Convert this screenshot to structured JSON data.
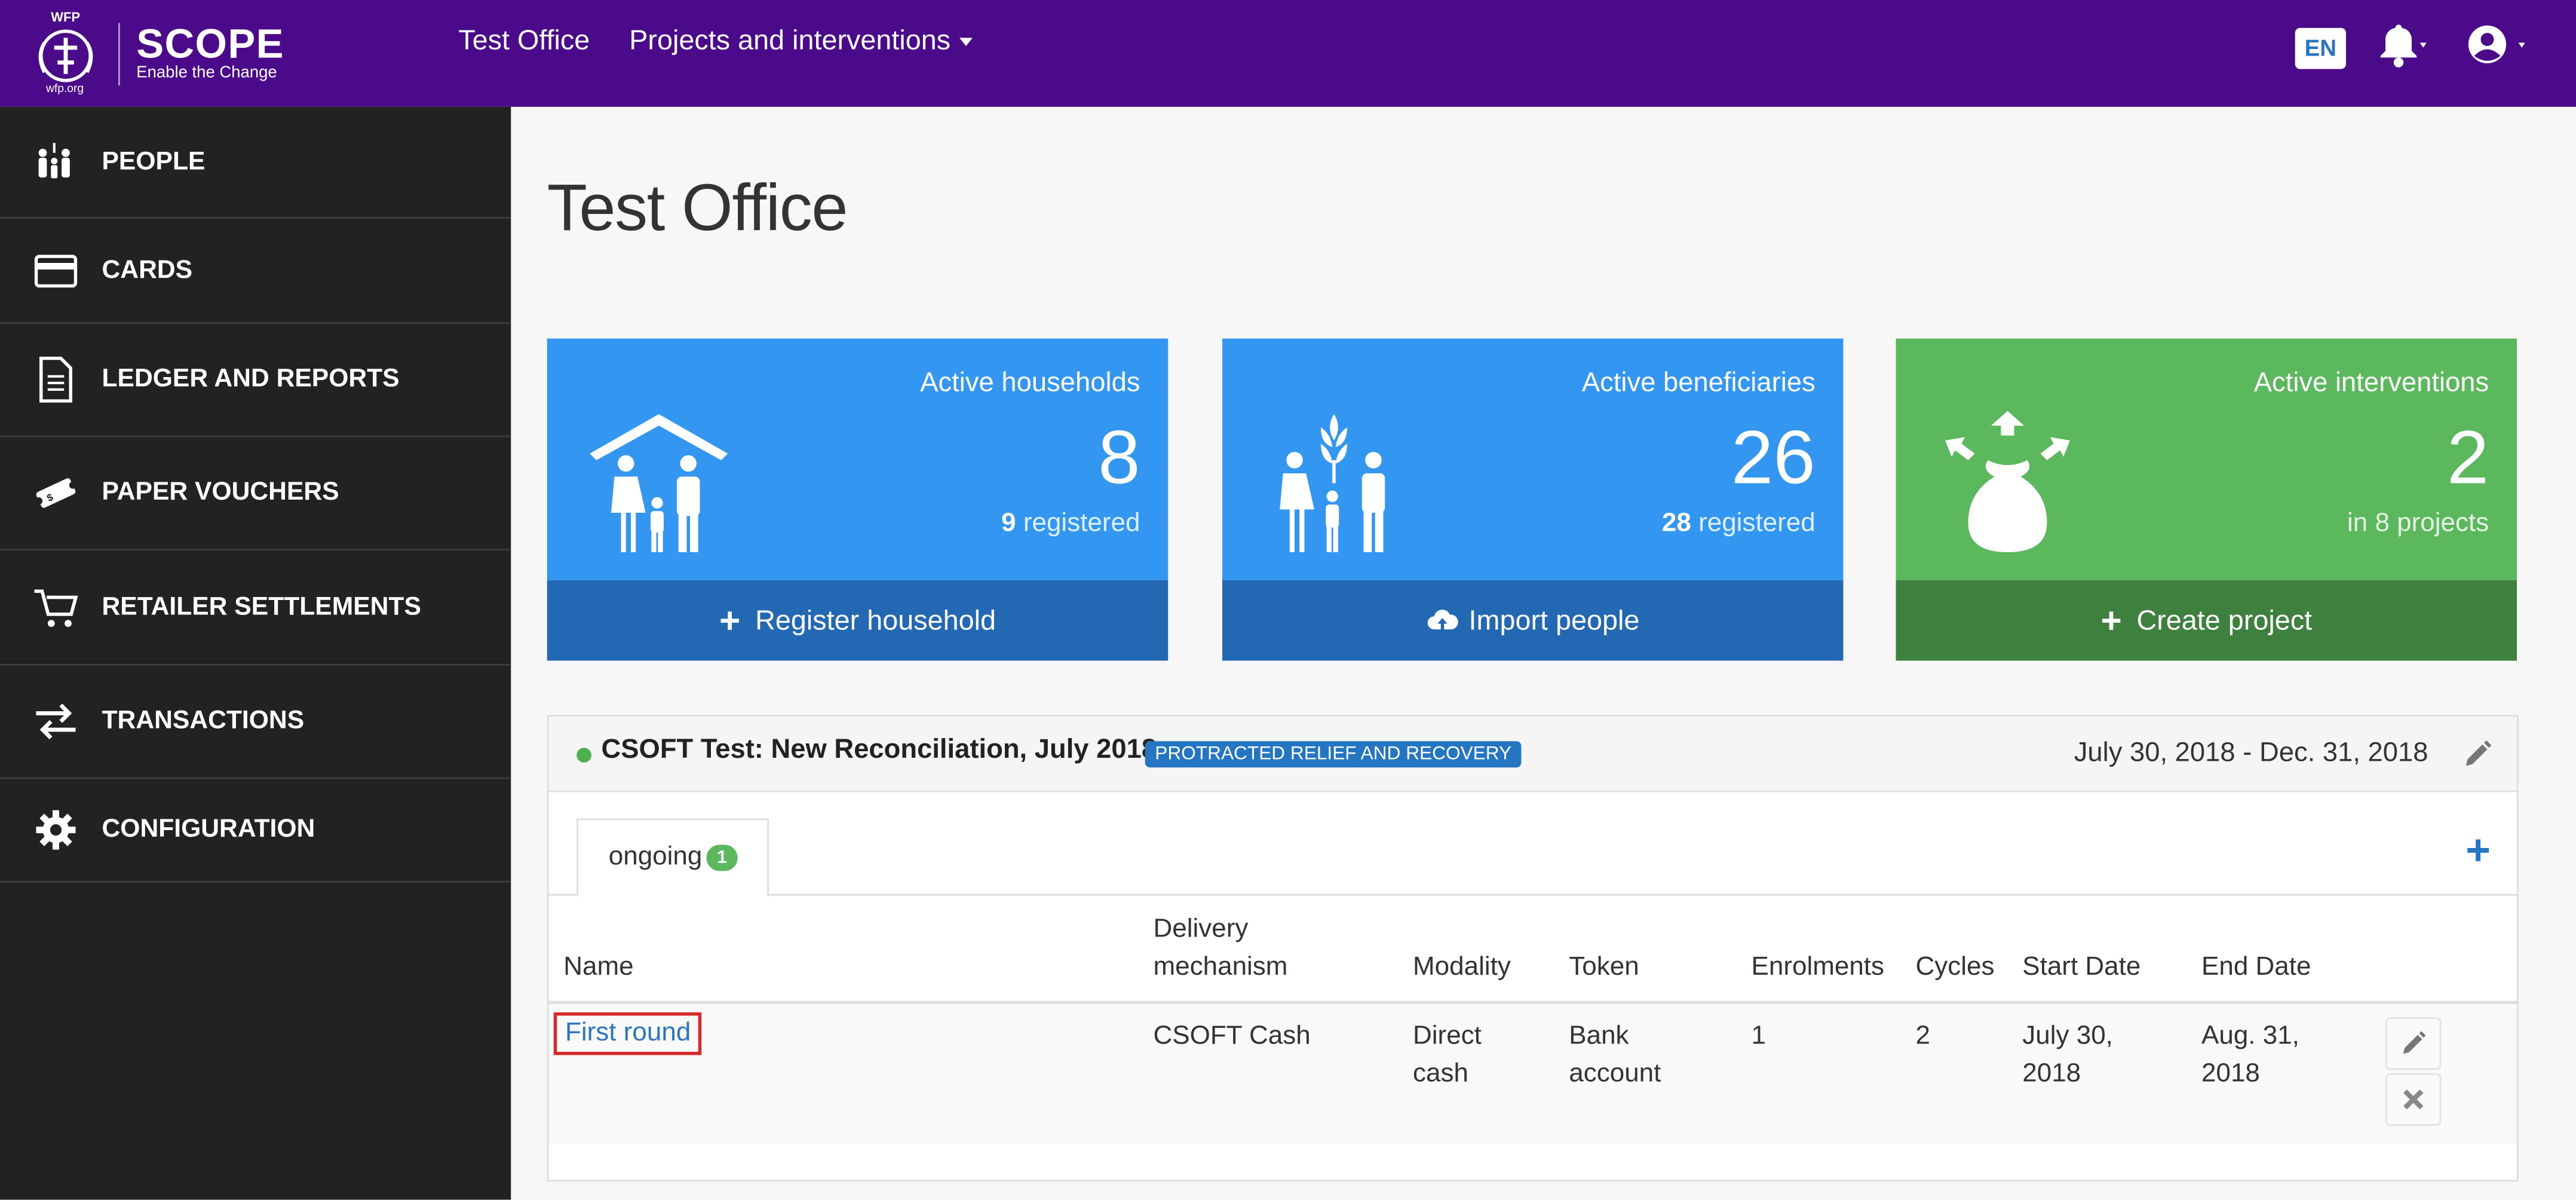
{
  "topnav": {
    "logo_top": "WFP",
    "logo_bottom": "wfp.org",
    "brand": "SCOPE",
    "tagline": "Enable the Change",
    "office_link": "Test Office",
    "projects_menu": "Projects and interventions",
    "lang": "EN"
  },
  "sidebar": {
    "items": [
      {
        "label": "PEOPLE",
        "icon": "people-icon"
      },
      {
        "label": "CARDS",
        "icon": "card-icon"
      },
      {
        "label": "LEDGER AND REPORTS",
        "icon": "document-icon"
      },
      {
        "label": "PAPER VOUCHERS",
        "icon": "voucher-icon"
      },
      {
        "label": "RETAILER SETTLEMENTS",
        "icon": "cart-icon"
      },
      {
        "label": "TRANSACTIONS",
        "icon": "transfer-arrows-icon"
      },
      {
        "label": "CONFIGURATION",
        "icon": "gear-icon"
      }
    ]
  },
  "page": {
    "title": "Test Office"
  },
  "stats": [
    {
      "title": "Active households",
      "value": "8",
      "sub_num": "9",
      "sub_text": "registered",
      "action": "Register household"
    },
    {
      "title": "Active beneficiaries",
      "value": "26",
      "sub_num": "28",
      "sub_text": "registered",
      "action": "Import people"
    },
    {
      "title": "Active interventions",
      "value": "2",
      "sub_text": "in 8 projects",
      "action": "Create project"
    }
  ],
  "project": {
    "name": "CSOFT Test: New Reconciliation, July 2018",
    "badge": "PROTRACTED RELIEF AND RECOVERY",
    "dates": "July 30, 2018 - Dec. 31, 2018",
    "tab_label": "ongoing",
    "tab_count": "1",
    "columns": {
      "name": "Name",
      "delivery_1": "Delivery",
      "delivery_2": "mechanism",
      "modality": "Modality",
      "token": "Token",
      "enrolments": "Enrolments",
      "cycles": "Cycles",
      "start": "Start Date",
      "end": "End Date"
    },
    "row": {
      "name": "First round",
      "delivery": "CSOFT Cash",
      "modality_1": "Direct",
      "modality_2": "cash",
      "token_1": "Bank",
      "token_2": "account",
      "enrolments": "1",
      "cycles": "2",
      "start_1": "July 30,",
      "start_2": "2018",
      "end_1": "Aug. 31,",
      "end_2": "2018"
    }
  },
  "colors": {
    "nav_purple": "#4b0a8a",
    "sidebar_dark": "#222222",
    "stat_blue": "#3397f2",
    "stat_blue_dark": "#2368b3",
    "stat_green": "#5cb85c",
    "stat_green_dark": "#3e803e",
    "link_blue": "#2a74c0"
  }
}
